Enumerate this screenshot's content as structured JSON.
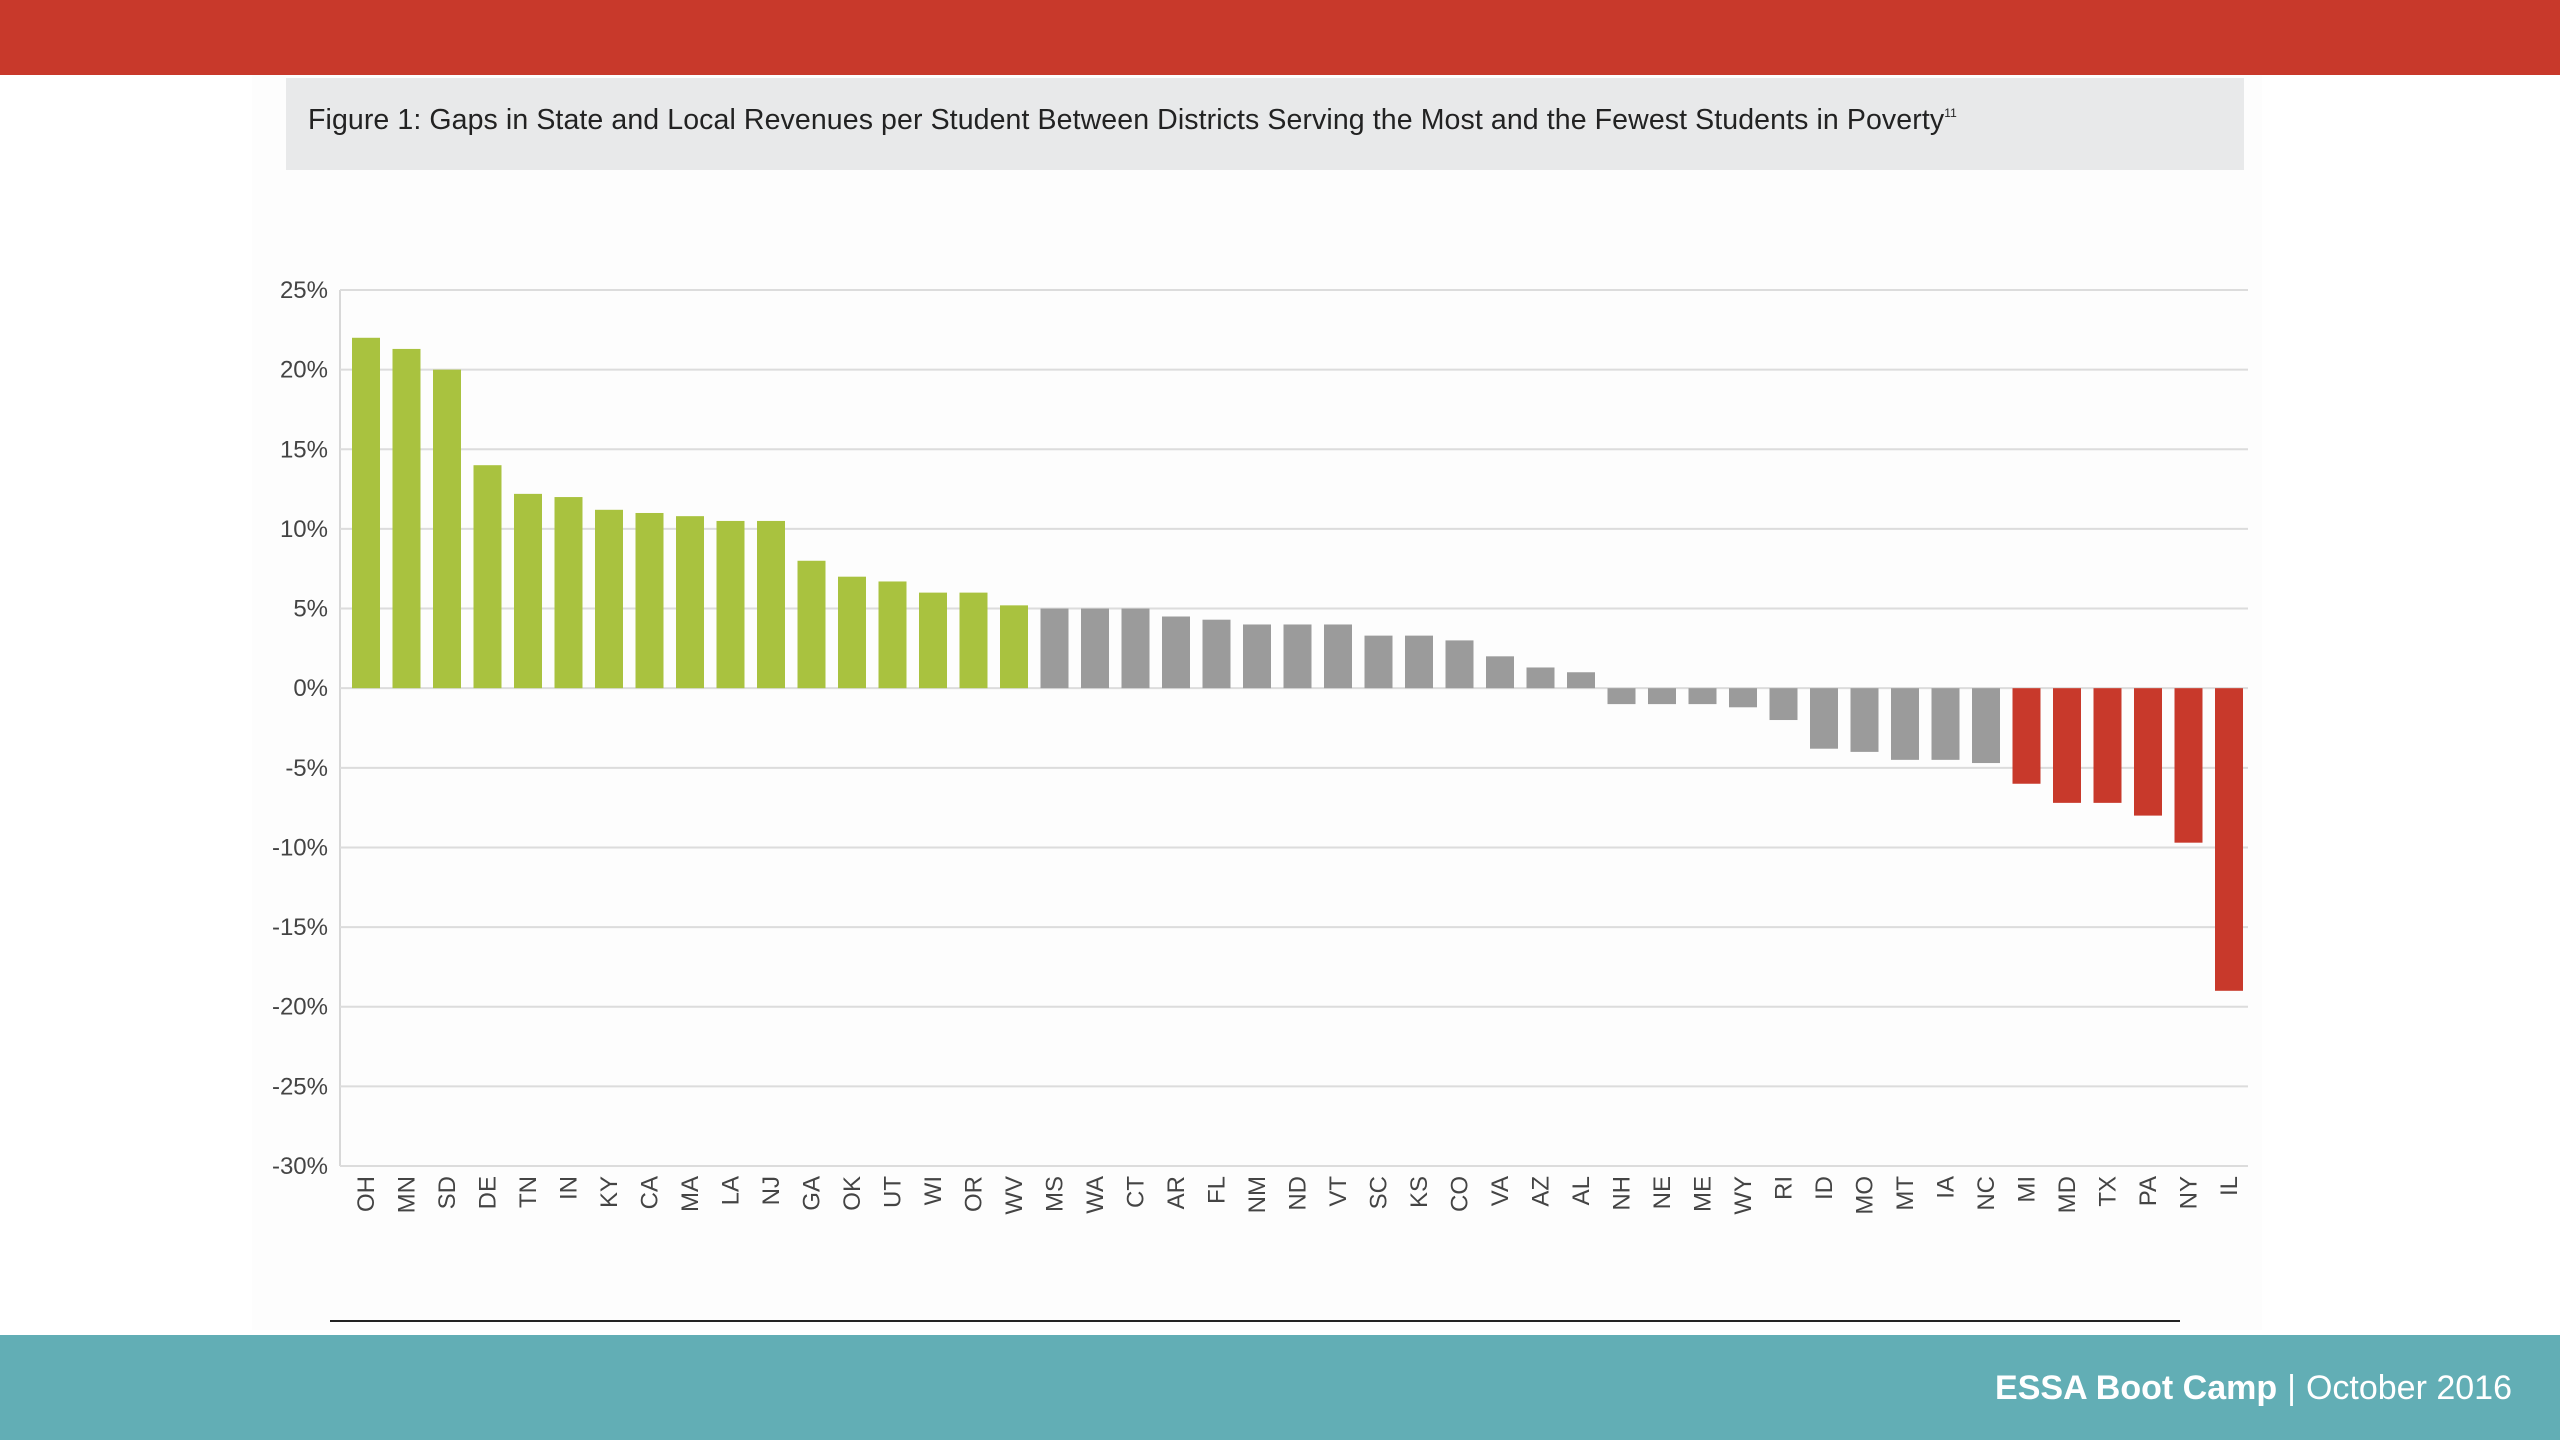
{
  "caption": {
    "text": "Figure 1: Gaps in State and Local Revenues per Student Between Districts Serving the Most and the Fewest Students in Poverty",
    "footnote": "11"
  },
  "footer": {
    "brand": "ESSA Boot Camp",
    "separator": "|",
    "date": "October 2016"
  },
  "colors": {
    "top_band": "#c8392b",
    "footer_band": "#62aeb5",
    "positive_bar": "#a9c23f",
    "neutral_bar": "#9b9b9b",
    "negative_bar": "#c8392b"
  },
  "chart_data": {
    "type": "bar",
    "title": "",
    "xlabel": "",
    "ylabel": "",
    "ylim": [
      -30,
      25
    ],
    "y_ticks": [
      25,
      20,
      15,
      10,
      5,
      0,
      -5,
      -10,
      -15,
      -20,
      -25,
      -30
    ],
    "y_tick_labels": [
      "25%",
      "20%",
      "15%",
      "10%",
      "5%",
      "0%",
      "-5%",
      "-10%",
      "-15%",
      "-20%",
      "-25%",
      "-30%"
    ],
    "grid": true,
    "legend": "none",
    "categories": [
      "OH",
      "MN",
      "SD",
      "DE",
      "TN",
      "IN",
      "KY",
      "CA",
      "MA",
      "LA",
      "NJ",
      "GA",
      "OK",
      "UT",
      "WI",
      "OR",
      "WV",
      "MS",
      "WA",
      "CT",
      "AR",
      "FL",
      "NM",
      "ND",
      "VT",
      "SC",
      "KS",
      "CO",
      "VA",
      "AZ",
      "AL",
      "NH",
      "NE",
      "ME",
      "WY",
      "RI",
      "ID",
      "MO",
      "MT",
      "IA",
      "NC",
      "MI",
      "MD",
      "TX",
      "PA",
      "NY",
      "IL"
    ],
    "values": [
      22,
      21.3,
      20,
      14,
      12.2,
      12,
      11.2,
      11,
      10.8,
      10.5,
      10.5,
      8,
      7,
      6.7,
      6,
      6,
      5.2,
      5,
      5,
      5,
      4.5,
      4.3,
      4,
      4,
      4,
      3.3,
      3.3,
      3,
      2,
      1.3,
      1,
      -1,
      -1,
      -1,
      -1.2,
      -2,
      -3.8,
      -4,
      -4.5,
      -4.5,
      -4.7,
      -6,
      -7.2,
      -7.2,
      -8,
      -9.7,
      -19
    ],
    "bar_groups": [
      "positive",
      "positive",
      "positive",
      "positive",
      "positive",
      "positive",
      "positive",
      "positive",
      "positive",
      "positive",
      "positive",
      "positive",
      "positive",
      "positive",
      "positive",
      "positive",
      "positive",
      "neutral",
      "neutral",
      "neutral",
      "neutral",
      "neutral",
      "neutral",
      "neutral",
      "neutral",
      "neutral",
      "neutral",
      "neutral",
      "neutral",
      "neutral",
      "neutral",
      "neutral",
      "neutral",
      "neutral",
      "neutral",
      "neutral",
      "neutral",
      "neutral",
      "neutral",
      "neutral",
      "neutral",
      "negative",
      "negative",
      "negative",
      "negative",
      "negative",
      "negative"
    ]
  }
}
